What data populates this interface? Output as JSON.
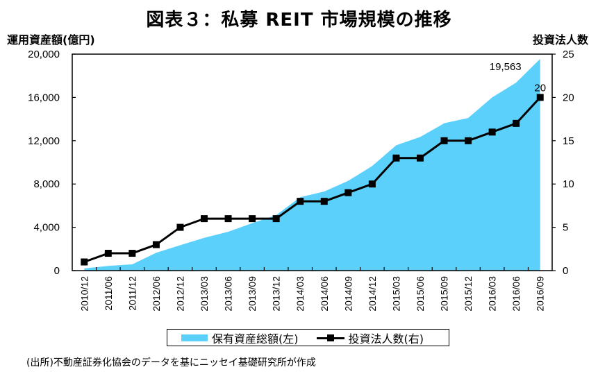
{
  "title": "図表３：私募 REIT 市場規模の推移",
  "axes": {
    "left_title": "運用資産額(億円)",
    "right_title": "投資法人数",
    "left_ticks": [
      "0",
      "4,000",
      "8,000",
      "12,000",
      "16,000",
      "20,000"
    ],
    "right_ticks": [
      "0",
      "5",
      "10",
      "15",
      "20",
      "25"
    ]
  },
  "legend": {
    "area_label": "保有資産総額(左)",
    "line_label": "投資法人数(右)"
  },
  "annotations": {
    "area_last": "19,563",
    "line_last": "20"
  },
  "footer": "(出所)不動産証券化協会のデータを基にニッセイ基礎研究所が作成",
  "colors": {
    "area": "#5BD0FB",
    "line": "#000000",
    "frame": "#000000"
  },
  "chart_data": {
    "type": "area+line",
    "title": "図表３：私募 REIT 市場規模の推移",
    "categories": [
      "2010/12",
      "2011/06",
      "2011/12",
      "2012/06",
      "2012/12",
      "2013/03",
      "2013/06",
      "2013/09",
      "2013/12",
      "2014/03",
      "2014/06",
      "2014/09",
      "2014/12",
      "2015/03",
      "2015/06",
      "2015/09",
      "2015/12",
      "2016/03",
      "2016/06",
      "2016/09"
    ],
    "series": [
      {
        "name": "保有資産総額(左)",
        "type": "area",
        "axis": "left",
        "values": [
          200,
          430,
          580,
          1650,
          2350,
          3030,
          3590,
          4380,
          5130,
          6780,
          7310,
          8290,
          9660,
          11580,
          12350,
          13610,
          14100,
          16000,
          17370,
          19563
        ]
      },
      {
        "name": "投資法人数(右)",
        "type": "line",
        "axis": "right",
        "marker": "square",
        "values": [
          1,
          2,
          2,
          3,
          5,
          6,
          6,
          6,
          6,
          8,
          8,
          9,
          10,
          13,
          13,
          15,
          15,
          16,
          17,
          20
        ]
      }
    ],
    "ylabel_left": "運用資産額(億円)",
    "ylabel_right": "投資法人数",
    "ylim_left": [
      0,
      20000
    ],
    "ylim_right": [
      0,
      25
    ],
    "yticks_left": [
      0,
      4000,
      8000,
      12000,
      16000,
      20000
    ],
    "yticks_right": [
      0,
      5,
      10,
      15,
      20,
      25
    ],
    "grid": false,
    "legend_position": "bottom",
    "annotations": [
      {
        "series": "保有資産総額(左)",
        "category": "2016/09",
        "text": "19,563"
      },
      {
        "series": "投資法人数(右)",
        "category": "2016/09",
        "text": "20"
      }
    ]
  }
}
